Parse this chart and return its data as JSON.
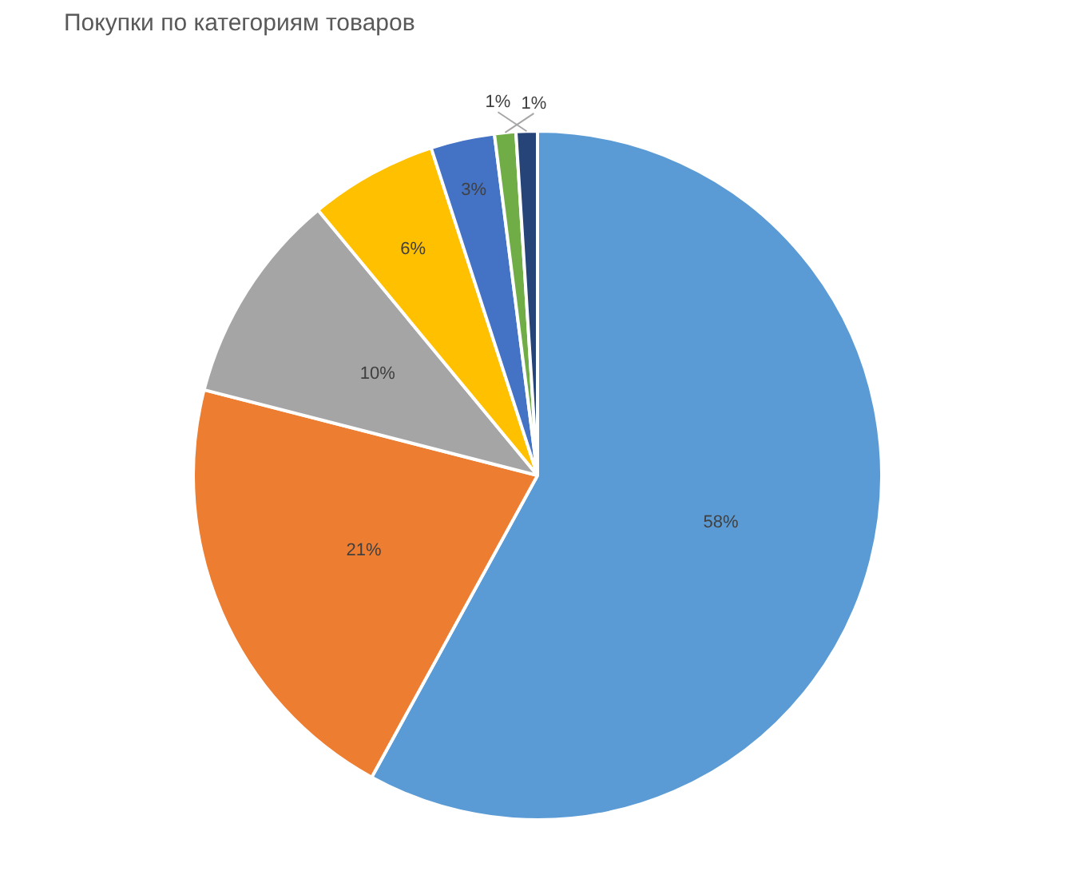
{
  "chart_data": {
    "type": "pie",
    "title": "Покупки по категориям товаров",
    "categories": [
      null,
      null,
      null,
      null,
      null,
      null,
      null
    ],
    "values": [
      58,
      21,
      10,
      6,
      3,
      1,
      1
    ],
    "value_labels": [
      "58%",
      "21%",
      "10%",
      "6%",
      "3%",
      "1%",
      "1%"
    ],
    "colors": [
      "#5b9bd5",
      "#ed7d31",
      "#a5a5a5",
      "#ffc000",
      "#4472c4",
      "#70ad47",
      "#264478"
    ],
    "legend": false
  }
}
